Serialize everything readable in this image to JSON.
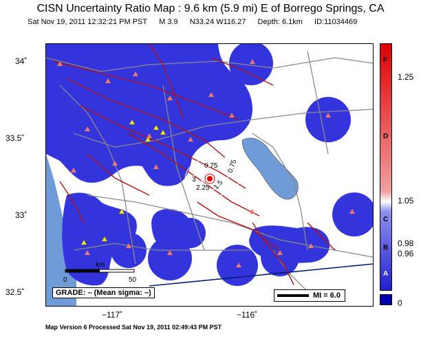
{
  "title": "CISN Uncertainty Ratio Map : 9.6 km (5.9 mi) E of Borrego Springs, CA",
  "subtitle": {
    "datetime": "Sat Nov 19, 2011 12:32:21 PM PST",
    "magnitude": "M 3.9",
    "location": "N33.24 W116.27",
    "depth": "Depth: 6.1km",
    "id": "ID:11034469"
  },
  "axes": {
    "lat_labels": [
      "34˚",
      "33.5˚",
      "33˚",
      "32.5˚"
    ],
    "lon_labels": [
      "−117˚",
      "−116˚"
    ]
  },
  "map": {
    "scale_bar": {
      "zero": "0",
      "unit": "km",
      "end": "50"
    },
    "grade_text": "GRADE: – (Mean sigma: –)",
    "mi_label": "MI = 6.0",
    "contour_labels": [
      "0.75",
      "0.75",
      "1.5",
      "2.25",
      "3"
    ],
    "colors": {
      "ocean": "#6f9bd7",
      "lake": "#6f9bd7",
      "uncertainty_blue": "#3434dd",
      "faults": "#b01010",
      "roads": "#8a8a8a",
      "border": "#001a6e",
      "station_triangle": "#f07a6a",
      "intensity_triangle": "#f0f000",
      "epicenter": "#e00000"
    }
  },
  "colorbar": {
    "value_labels": [
      "1.25",
      "1.05",
      "0.98",
      "0.96",
      "0"
    ],
    "grade_labels": [
      "F",
      "D",
      "C",
      "B",
      "A"
    ]
  },
  "footer": "Map Version 6 Processed Sat Nov 19, 2011 02:49:43 PM PST"
}
